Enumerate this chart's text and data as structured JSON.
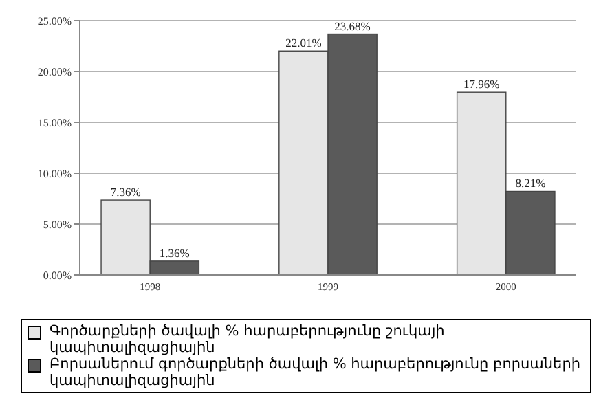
{
  "chart_data": {
    "type": "bar",
    "categories": [
      "1998",
      "1999",
      "2000"
    ],
    "series": [
      {
        "name": "Գործարքների ծավալի % հարաբերությունը շուկայի կապիտալիզացիային",
        "color": "#e6e6e6",
        "values": [
          7.36,
          22.01,
          17.96
        ],
        "value_labels": [
          "7.36%",
          "22.01%",
          "17.96%"
        ]
      },
      {
        "name": "Բորսաներում գործարքների ծավալի % հարաբերությունը բորսաների կապիտալիզացիային",
        "color": "#5a5a5a",
        "values": [
          1.36,
          23.68,
          8.21
        ],
        "value_labels": [
          "1.36%",
          "23.68%",
          "8.21%"
        ]
      }
    ],
    "ylim": [
      0,
      25
    ],
    "yticks": [
      {
        "value": 0,
        "label": "0.00%"
      },
      {
        "value": 5,
        "label": "5.00%"
      },
      {
        "value": 10,
        "label": "10.00%"
      },
      {
        "value": 15,
        "label": "15.00%"
      },
      {
        "value": 20,
        "label": "20.00%"
      },
      {
        "value": 25,
        "label": "25.00%"
      }
    ],
    "grid": "y",
    "legend": "bottom"
  }
}
